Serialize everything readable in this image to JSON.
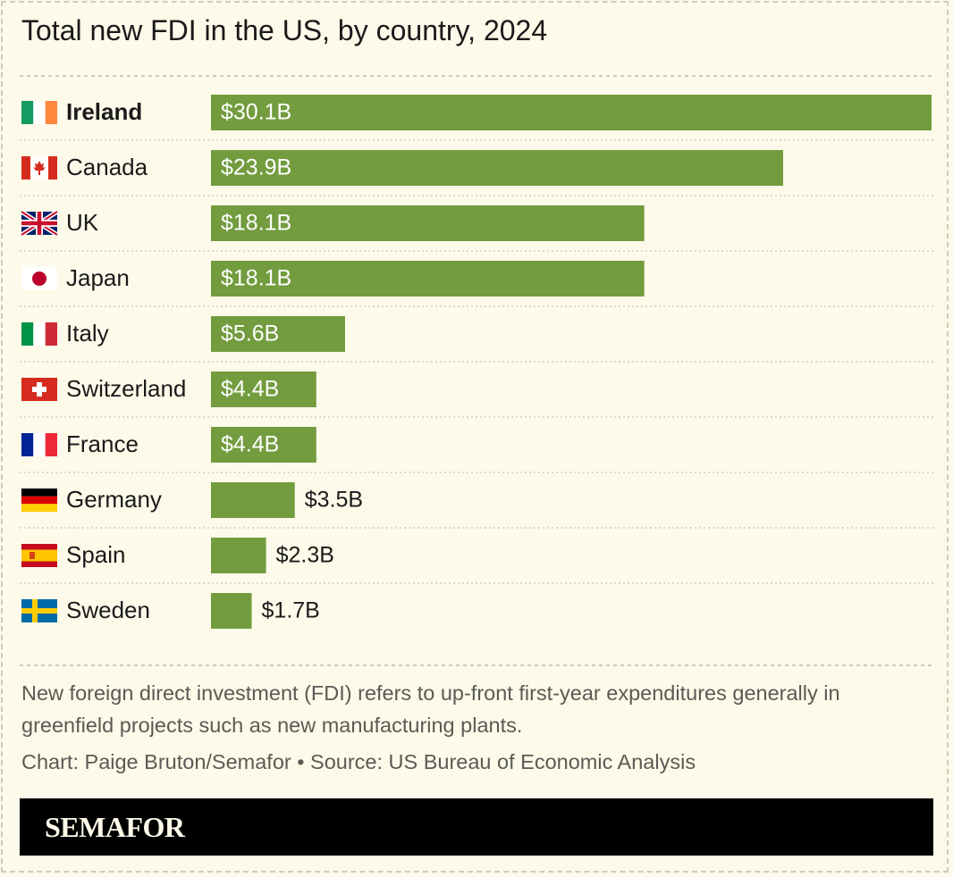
{
  "chart_data": {
    "type": "bar",
    "orientation": "horizontal",
    "title": "Total new FDI in the US, by country, 2024",
    "categories": [
      "Ireland",
      "Canada",
      "UK",
      "Japan",
      "Italy",
      "Switzerland",
      "France",
      "Germany",
      "Spain",
      "Sweden"
    ],
    "values": [
      30.1,
      23.9,
      18.1,
      18.1,
      5.6,
      4.4,
      4.4,
      3.5,
      2.3,
      1.7
    ],
    "value_labels": [
      "$30.1B",
      "$23.9B",
      "$18.1B",
      "$18.1B",
      "$5.6B",
      "$4.4B",
      "$4.4B",
      "$3.5B",
      "$2.3B",
      "$1.7B"
    ],
    "color": "#729c3e",
    "note": "New foreign direct investment (FDI) refers to up-front first-year expenditures generally in greenfield projects such as new manufacturing plants.",
    "source": "Chart: Paige Bruton/Semafor • Source: US Bureau of Economic Analysis",
    "brand": "SEMAFOR"
  }
}
